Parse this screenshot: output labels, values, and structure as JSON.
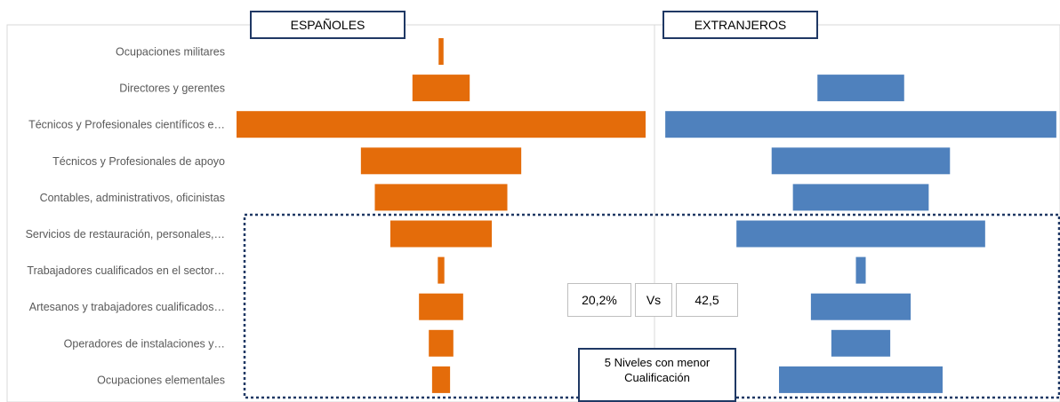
{
  "chart_data": {
    "type": "bar",
    "orientation": "horizontal",
    "categories": [
      "Ocupaciones militares",
      "Directores y gerentes",
      "Técnicos y Profesionales científicos e…",
      "Técnicos y Profesionales de apoyo",
      "Contables, administrativos, oficinistas",
      "Servicios de restauración, personales,…",
      "Trabajadores cualificados en el sector…",
      "Artesanos y trabajadores cualificados…",
      "Operadores de instalaciones y…",
      "Ocupaciones elementales"
    ],
    "series": [
      {
        "name": "ESPAÑOLES",
        "color": "#e46c0a",
        "values": [
          0.6,
          7.0,
          50.0,
          19.6,
          16.2,
          12.4,
          0.8,
          5.4,
          3.0,
          2.2
        ]
      },
      {
        "name": "EXTRANJEROS",
        "color": "#4f81bd",
        "values": [
          0,
          10.6,
          47.8,
          21.8,
          16.6,
          30.4,
          1.2,
          12.2,
          7.2,
          20.0
        ]
      }
    ]
  },
  "annotations": {
    "left_value": "20,2%",
    "vs": "Vs",
    "right_value": "42,5",
    "note": "5 Niveles con menor Cualificación"
  }
}
